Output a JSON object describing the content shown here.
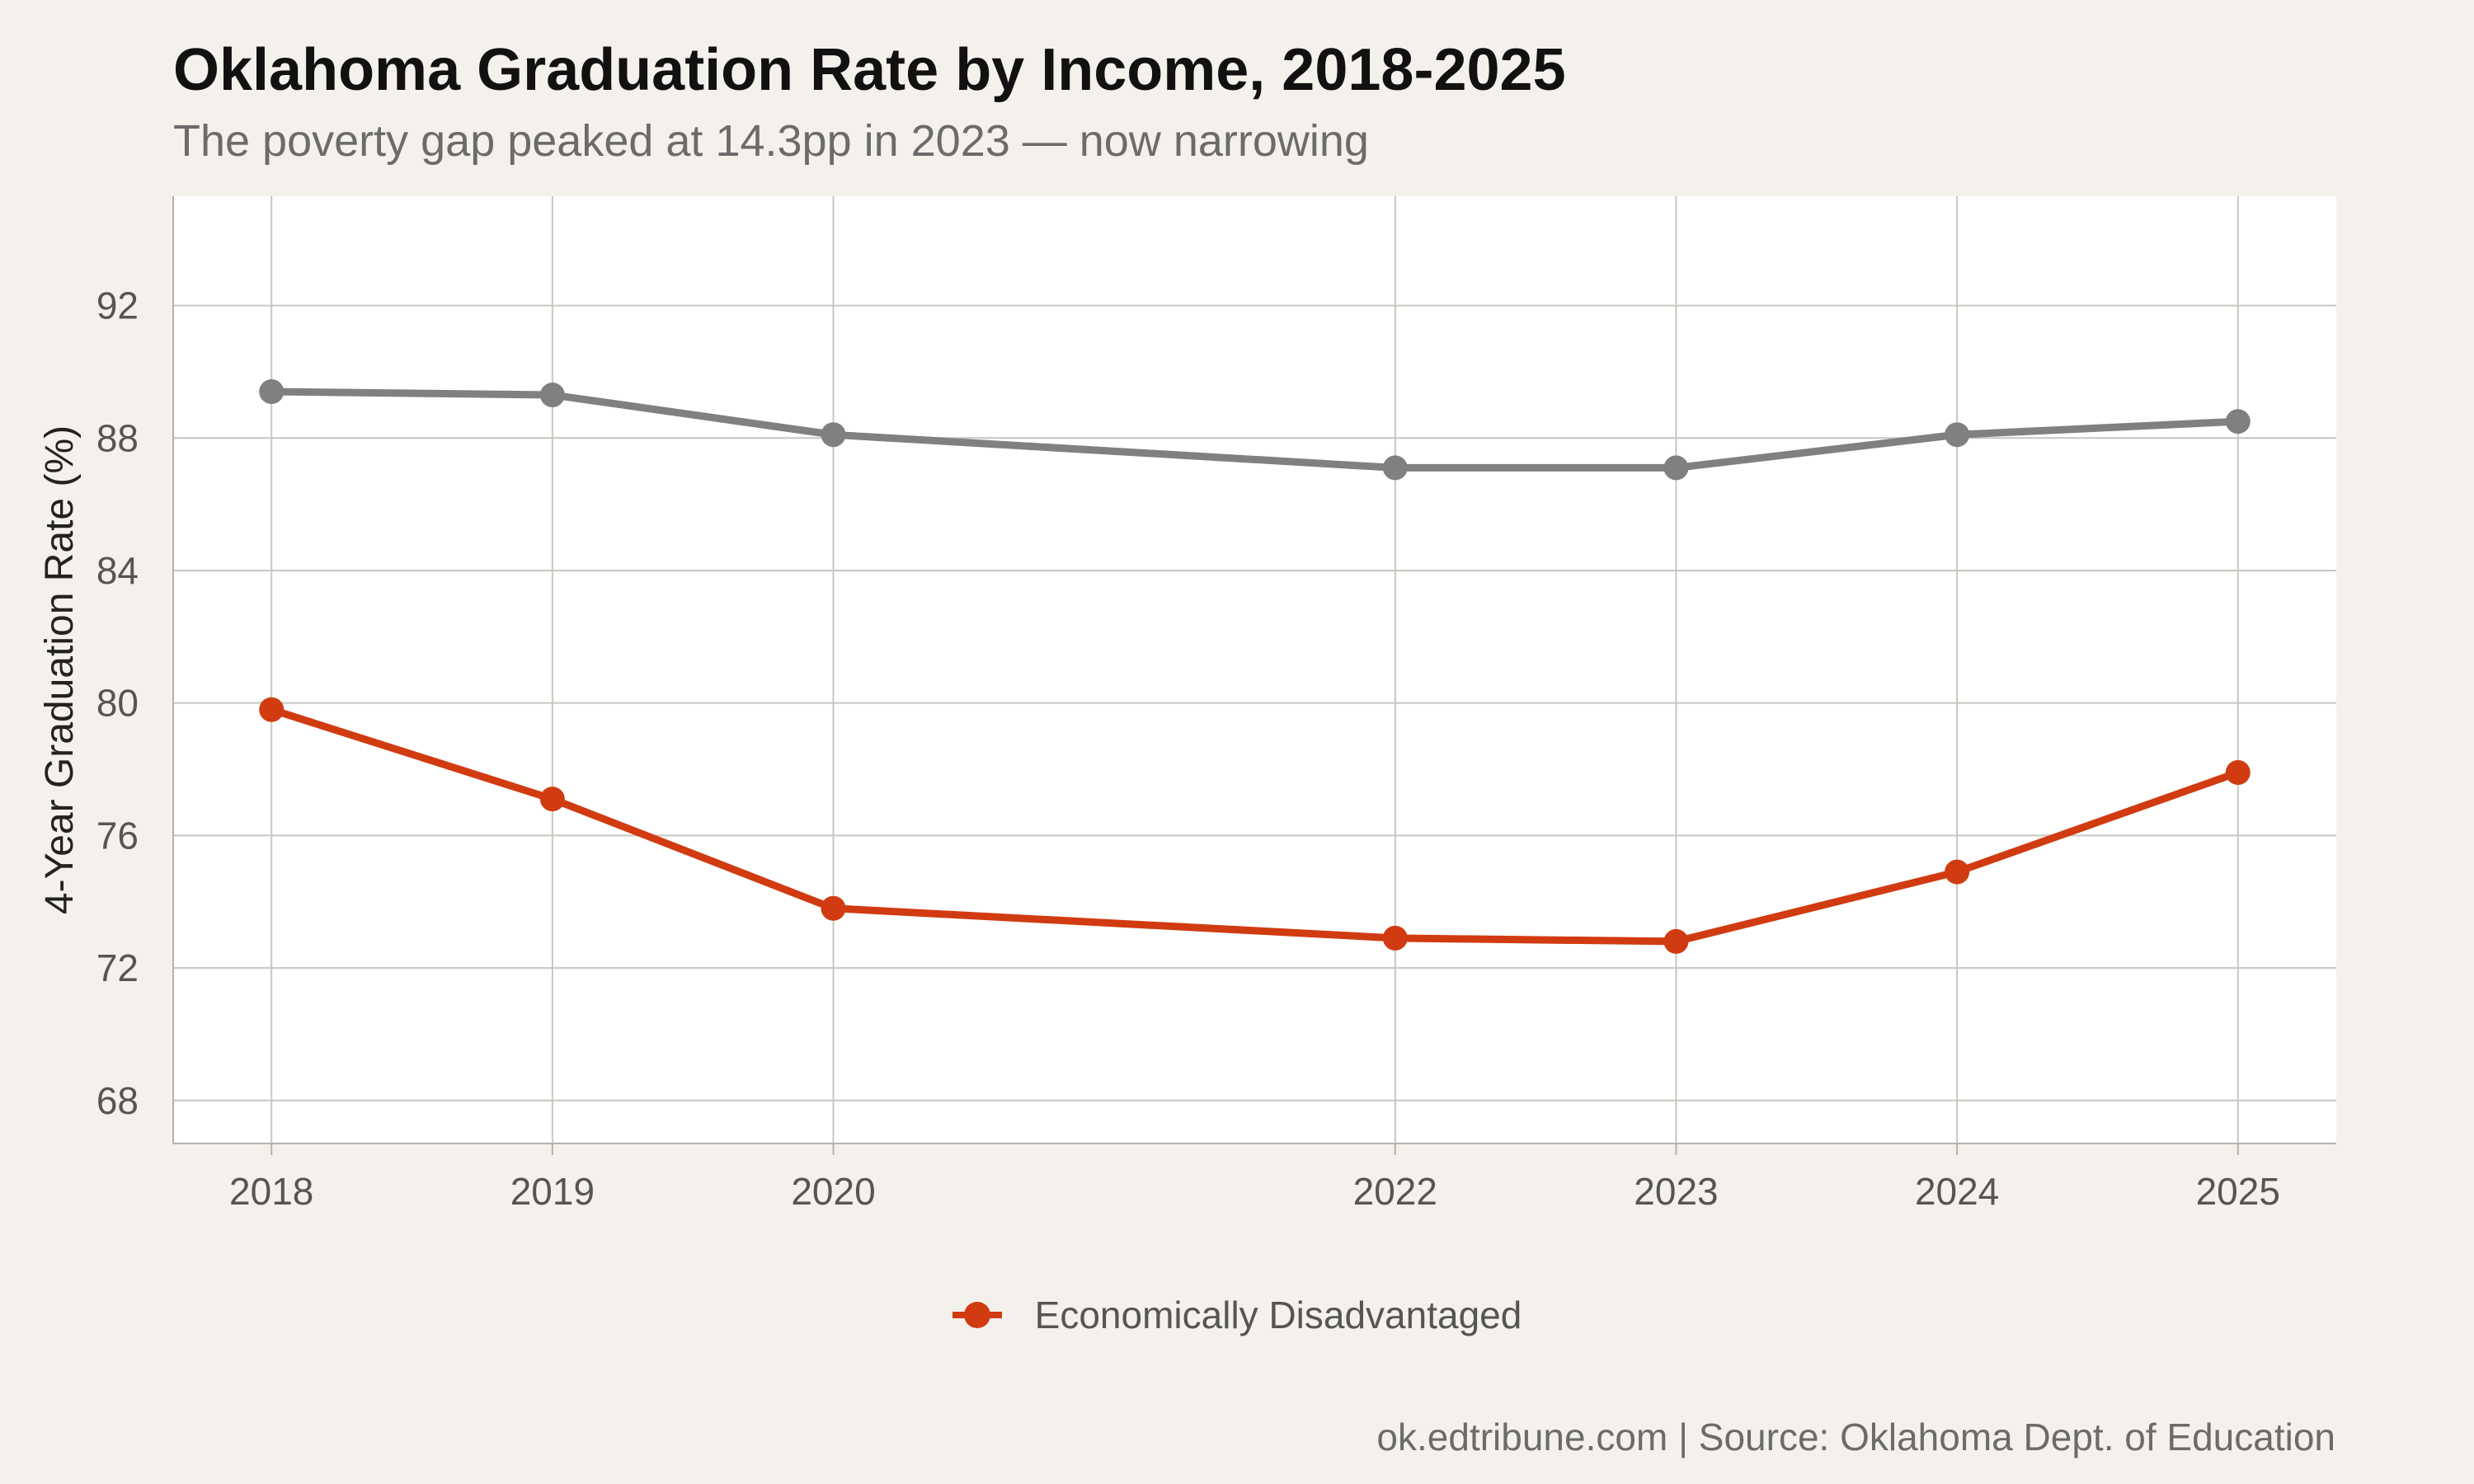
{
  "title": "Oklahoma Graduation Rate by Income, 2018-2025",
  "subtitle": "The poverty gap peaked at 14.3pp in 2023 — now narrowing",
  "caption": "ok.edtribune.com | Source: Oklahoma Dept. of Education",
  "chart_data": {
    "type": "line",
    "title": "Oklahoma Graduation Rate by Income, 2018-2025",
    "subtitle": "The poverty gap peaked at 14.3pp in 2023 — now narrowing",
    "xlabel": "",
    "ylabel": "4-Year Graduation Rate (%)",
    "x": [
      2018,
      2019,
      2020,
      2022,
      2023,
      2024,
      2025
    ],
    "xlim": [
      2017.65,
      2025.35
    ],
    "ylim": [
      66.7,
      95.3
    ],
    "yticks": [
      68,
      72,
      76,
      80,
      84,
      88,
      92
    ],
    "grid": true,
    "legend_position": "bottom",
    "series": [
      {
        "values": [
          89.4,
          89.3,
          88.1,
          87.1,
          87.1,
          88.1,
          88.5
        ],
        "color": "#808080"
      },
      {
        "name": "Economically Disadvantaged",
        "values": [
          79.8,
          77.1,
          73.8,
          72.9,
          72.8,
          74.9,
          77.9
        ],
        "color": "#d13b11"
      }
    ]
  }
}
